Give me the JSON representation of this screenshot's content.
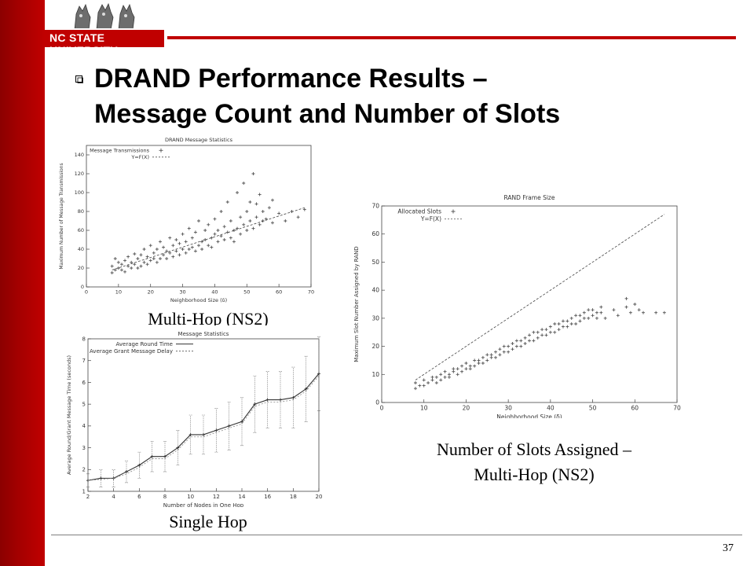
{
  "logo": {
    "text": "NC STATE UNIVERSITY"
  },
  "slide": {
    "title_line1": "DRAND Performance Results –",
    "title_line2": "Message Count and Number of Slots",
    "page_number": "37"
  },
  "colors": {
    "accent": "#c00000",
    "sidebar": "#a30000"
  },
  "captions": {
    "msg_stats": "Multi-Hop (NS2)",
    "single_hop": "Single Hop",
    "slots_line1": "Number of Slots Assigned –",
    "slots_line2": "Multi-Hop (NS2)"
  },
  "chart_data": [
    {
      "id": "msg",
      "type": "scatter",
      "title": "DRAND Message Statistics",
      "xlabel": "Neighborhood Size (δ)",
      "ylabel": "Maximum Number of Message Transmissions",
      "xlim": [
        0,
        70
      ],
      "ylim": [
        0,
        150
      ],
      "xticks": [
        0,
        10,
        20,
        30,
        40,
        50,
        60,
        70
      ],
      "yticks": [
        0,
        20,
        40,
        60,
        80,
        100,
        120,
        140
      ],
      "legend": "top-left",
      "series": [
        {
          "name": "Message Transmissions",
          "points": [
            [
              8,
              15
            ],
            [
              8,
              22
            ],
            [
              9,
              18
            ],
            [
              9,
              30
            ],
            [
              10,
              20
            ],
            [
              10,
              26
            ],
            [
              11,
              18
            ],
            [
              11,
              24
            ],
            [
              12,
              16
            ],
            [
              12,
              28
            ],
            [
              13,
              22
            ],
            [
              13,
              32
            ],
            [
              14,
              20
            ],
            [
              14,
              26
            ],
            [
              15,
              24
            ],
            [
              15,
              35
            ],
            [
              16,
              20
            ],
            [
              16,
              30
            ],
            [
              17,
              22
            ],
            [
              17,
              34
            ],
            [
              18,
              26
            ],
            [
              18,
              40
            ],
            [
              19,
              24
            ],
            [
              19,
              32
            ],
            [
              20,
              28
            ],
            [
              20,
              44
            ],
            [
              21,
              30
            ],
            [
              21,
              36
            ],
            [
              22,
              26
            ],
            [
              22,
              40
            ],
            [
              23,
              30
            ],
            [
              23,
              48
            ],
            [
              24,
              34
            ],
            [
              24,
              42
            ],
            [
              25,
              30
            ],
            [
              25,
              38
            ],
            [
              26,
              36
            ],
            [
              26,
              52
            ],
            [
              27,
              32
            ],
            [
              27,
              44
            ],
            [
              28,
              38
            ],
            [
              28,
              50
            ],
            [
              29,
              34
            ],
            [
              29,
              46
            ],
            [
              30,
              40
            ],
            [
              30,
              56
            ],
            [
              31,
              36
            ],
            [
              31,
              48
            ],
            [
              32,
              40
            ],
            [
              32,
              62
            ],
            [
              33,
              42
            ],
            [
              33,
              52
            ],
            [
              34,
              38
            ],
            [
              34,
              58
            ],
            [
              35,
              44
            ],
            [
              35,
              70
            ],
            [
              36,
              48
            ],
            [
              36,
              40
            ],
            [
              37,
              50
            ],
            [
              37,
              60
            ],
            [
              38,
              44
            ],
            [
              38,
              66
            ],
            [
              39,
              52
            ],
            [
              39,
              42
            ],
            [
              40,
              56
            ],
            [
              40,
              72
            ],
            [
              41,
              48
            ],
            [
              41,
              60
            ],
            [
              42,
              54
            ],
            [
              42,
              80
            ],
            [
              43,
              50
            ],
            [
              43,
              64
            ],
            [
              44,
              58
            ],
            [
              44,
              90
            ],
            [
              45,
              52
            ],
            [
              45,
              70
            ],
            [
              46,
              60
            ],
            [
              46,
              48
            ],
            [
              47,
              62
            ],
            [
              47,
              100
            ],
            [
              48,
              56
            ],
            [
              48,
              74
            ],
            [
              49,
              66
            ],
            [
              49,
              110
            ],
            [
              50,
              60
            ],
            [
              50,
              80
            ],
            [
              51,
              70
            ],
            [
              51,
              90
            ],
            [
              52,
              62
            ],
            [
              52,
              120
            ],
            [
              53,
              74
            ],
            [
              53,
              88
            ],
            [
              54,
              66
            ],
            [
              54,
              98
            ],
            [
              55,
              80
            ],
            [
              55,
              70
            ],
            [
              56,
              72
            ],
            [
              57,
              84
            ],
            [
              58,
              68
            ],
            [
              58,
              92
            ],
            [
              60,
              78
            ],
            [
              62,
              70
            ],
            [
              64,
              80
            ],
            [
              66,
              74
            ],
            [
              68,
              82
            ]
          ]
        },
        {
          "name": "Y=F(X)",
          "line": [
            [
              8,
              18
            ],
            [
              68,
              84
            ]
          ]
        }
      ]
    },
    {
      "id": "single",
      "type": "line",
      "title": "Message Statistics",
      "xlabel": "Number of Nodes in One Hop",
      "ylabel": "Average Round/Grant Message Time (seconds)",
      "xlim": [
        2,
        20
      ],
      "ylim": [
        1,
        8
      ],
      "xticks": [
        2,
        4,
        6,
        8,
        10,
        12,
        14,
        16,
        18,
        20
      ],
      "yticks": [
        1,
        2,
        3,
        4,
        5,
        6,
        7,
        8
      ],
      "legend": "top-left",
      "series": [
        {
          "name": "Average Round Time",
          "x": [
            2,
            3,
            4,
            5,
            6,
            7,
            8,
            9,
            10,
            11,
            12,
            13,
            14,
            15,
            16,
            17,
            18,
            19,
            20
          ],
          "y": [
            1.5,
            1.6,
            1.6,
            1.9,
            2.2,
            2.6,
            2.6,
            3.0,
            3.6,
            3.6,
            3.8,
            4.0,
            4.2,
            5.0,
            5.2,
            5.2,
            5.3,
            5.7,
            6.4
          ],
          "err": [
            0.3,
            0.4,
            0.4,
            0.5,
            0.6,
            0.7,
            0.7,
            0.8,
            0.9,
            0.9,
            1.0,
            1.1,
            1.1,
            1.3,
            1.3,
            1.3,
            1.4,
            1.5,
            1.7
          ]
        },
        {
          "name": "Average Grant Message Delay",
          "x": [
            2,
            3,
            4,
            5,
            6,
            7,
            8,
            9,
            10,
            11,
            12,
            13,
            14,
            15,
            16,
            17,
            18,
            19,
            20
          ],
          "y": [
            1.5,
            1.55,
            1.6,
            1.8,
            2.1,
            2.5,
            2.5,
            2.9,
            3.5,
            3.5,
            3.7,
            3.9,
            4.1,
            4.9,
            5.1,
            5.1,
            5.2,
            5.6,
            6.3
          ]
        }
      ]
    },
    {
      "id": "slots",
      "type": "scatter",
      "title": "RAND Frame Size",
      "xlabel": "Neighborhood Size (δ)",
      "ylabel": "Maximum Slot Number Assigned by RAND",
      "xlim": [
        0,
        70
      ],
      "ylim": [
        0,
        70
      ],
      "xticks": [
        0,
        10,
        20,
        30,
        40,
        50,
        60,
        70
      ],
      "yticks": [
        0,
        10,
        20,
        30,
        40,
        50,
        60,
        70
      ],
      "legend": "top-left",
      "series": [
        {
          "name": "Allocated Slots",
          "points": [
            [
              8,
              5
            ],
            [
              8,
              7
            ],
            [
              9,
              6
            ],
            [
              10,
              6
            ],
            [
              10,
              8
            ],
            [
              11,
              7
            ],
            [
              12,
              8
            ],
            [
              12,
              9
            ],
            [
              13,
              7
            ],
            [
              13,
              9
            ],
            [
              14,
              8
            ],
            [
              14,
              10
            ],
            [
              15,
              9
            ],
            [
              15,
              11
            ],
            [
              16,
              9
            ],
            [
              16,
              10
            ],
            [
              17,
              11
            ],
            [
              17,
              12
            ],
            [
              18,
              10
            ],
            [
              18,
              12
            ],
            [
              19,
              11
            ],
            [
              19,
              13
            ],
            [
              20,
              12
            ],
            [
              20,
              14
            ],
            [
              21,
              12
            ],
            [
              21,
              13
            ],
            [
              22,
              13
            ],
            [
              22,
              15
            ],
            [
              23,
              14
            ],
            [
              23,
              15
            ],
            [
              24,
              14
            ],
            [
              24,
              16
            ],
            [
              25,
              15
            ],
            [
              25,
              17
            ],
            [
              26,
              16
            ],
            [
              26,
              17
            ],
            [
              27,
              16
            ],
            [
              27,
              18
            ],
            [
              28,
              17
            ],
            [
              28,
              19
            ],
            [
              29,
              18
            ],
            [
              29,
              20
            ],
            [
              30,
              18
            ],
            [
              30,
              20
            ],
            [
              31,
              19
            ],
            [
              31,
              21
            ],
            [
              32,
              20
            ],
            [
              32,
              22
            ],
            [
              33,
              20
            ],
            [
              33,
              22
            ],
            [
              34,
              21
            ],
            [
              34,
              23
            ],
            [
              35,
              22
            ],
            [
              35,
              24
            ],
            [
              36,
              22
            ],
            [
              36,
              25
            ],
            [
              37,
              23
            ],
            [
              37,
              25
            ],
            [
              38,
              24
            ],
            [
              38,
              26
            ],
            [
              39,
              24
            ],
            [
              39,
              26
            ],
            [
              40,
              25
            ],
            [
              40,
              27
            ],
            [
              41,
              25
            ],
            [
              41,
              28
            ],
            [
              42,
              26
            ],
            [
              42,
              28
            ],
            [
              43,
              27
            ],
            [
              43,
              29
            ],
            [
              44,
              27
            ],
            [
              44,
              29
            ],
            [
              45,
              28
            ],
            [
              45,
              30
            ],
            [
              46,
              28
            ],
            [
              46,
              31
            ],
            [
              47,
              29
            ],
            [
              47,
              31
            ],
            [
              48,
              30
            ],
            [
              48,
              32
            ],
            [
              49,
              30
            ],
            [
              49,
              33
            ],
            [
              50,
              31
            ],
            [
              50,
              33
            ],
            [
              51,
              32
            ],
            [
              51,
              30
            ],
            [
              52,
              32
            ],
            [
              52,
              34
            ],
            [
              53,
              30
            ],
            [
              55,
              33
            ],
            [
              56,
              31
            ],
            [
              58,
              34
            ],
            [
              58,
              37
            ],
            [
              59,
              32
            ],
            [
              60,
              35
            ],
            [
              61,
              33
            ],
            [
              62,
              32
            ],
            [
              65,
              32
            ],
            [
              67,
              32
            ]
          ]
        },
        {
          "name": "Y=F(X)",
          "line": [
            [
              8,
              8
            ],
            [
              67,
              67
            ]
          ]
        }
      ]
    }
  ]
}
